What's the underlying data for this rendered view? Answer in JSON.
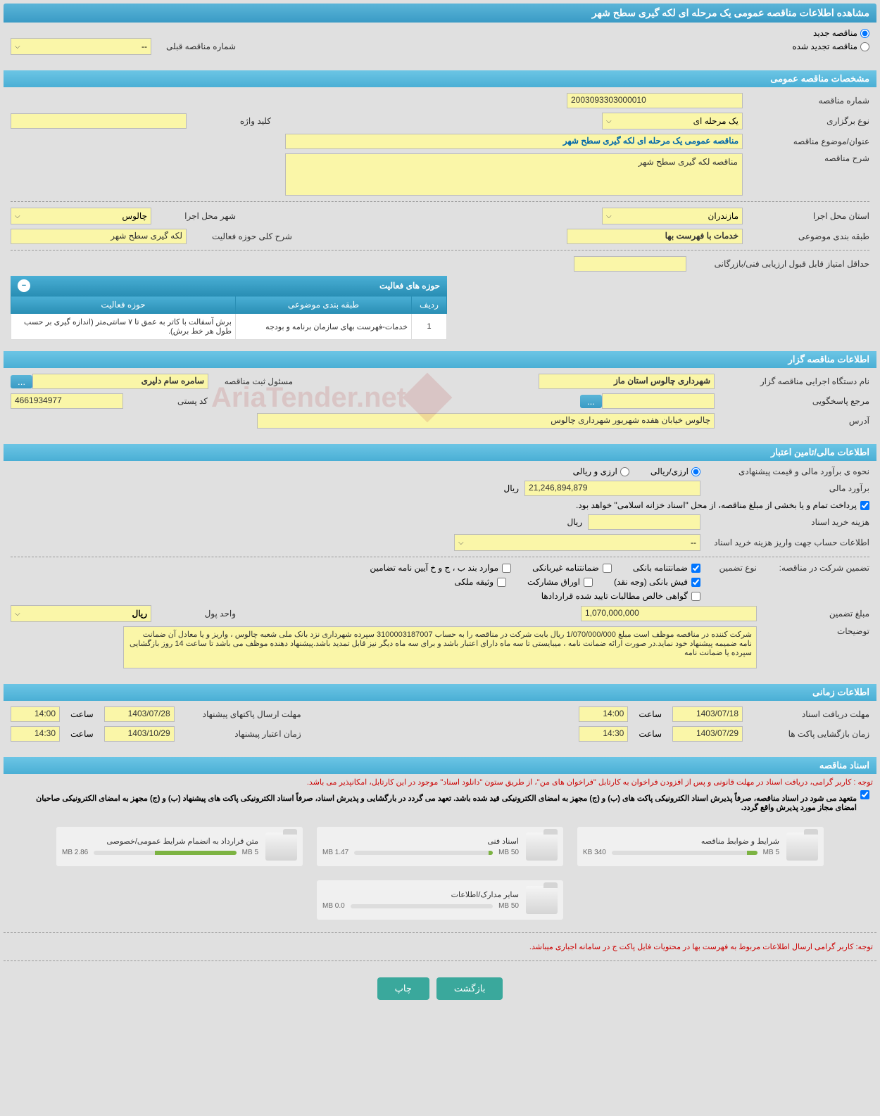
{
  "page_title": "مشاهده اطلاعات مناقصه عمومی یک مرحله ای لکه گیری سطح شهر",
  "tender_type": {
    "new": "مناقصه جدید",
    "renewed": "مناقصه تجدید شده",
    "prev_number_label": "شماره مناقصه قبلی",
    "prev_number_value": "--"
  },
  "sections": {
    "general": "مشخصات مناقصه عمومی",
    "org": "اطلاعات مناقصه گزار",
    "financial": "اطلاعات مالی/تامین اعتبار",
    "timing": "اطلاعات زمانی",
    "docs": "اسناد مناقصه"
  },
  "general": {
    "number_label": "شماره مناقصه",
    "number": "2003093303000010",
    "keyword_label": "کلید واژه",
    "keyword": "",
    "holding_type_label": "نوع برگزاری",
    "holding_type": "یک مرحله ای",
    "subject_label": "عنوان/موضوع مناقصه",
    "subject": "مناقصه عمومی یک مرحله ای لکه گیری سطح شهر",
    "desc_label": "شرح مناقصه",
    "desc": "مناقصه لکه گیری سطح شهر",
    "province_label": "استان محل اجرا",
    "province": "مازندران",
    "city_label": "شهر محل اجرا",
    "city": "چالوس",
    "category_label": "طبقه بندی موضوعی",
    "category": "خدمات با فهرست بها",
    "activity_area_label": "شرح کلی حوزه فعالیت",
    "activity_area": "لکه گیری سطح شهر",
    "score_label": "حداقل امتیاز قابل قبول ارزیابی فنی/بازرگانی",
    "score": ""
  },
  "activity_table": {
    "title": "حوزه های فعالیت",
    "columns": {
      "row": "ردیف",
      "category": "طبقه بندی موضوعی",
      "area": "حوزه فعالیت"
    },
    "rows": [
      {
        "row": "1",
        "category": "خدمات-فهرست بهای سازمان برنامه و بودجه",
        "area": "برش آسفالت با کاتر به عمق تا ۷ سانتی‌متر (اندازه گیری بر حسب طول هر خط برش)."
      }
    ]
  },
  "org": {
    "executor_label": "نام دستگاه اجرایی مناقصه گزار",
    "executor": "شهرداری چالوس استان ماز",
    "register_label": "مسئول ثبت مناقصه",
    "register": "سامره سام دلیری",
    "dots": "...",
    "responder_label": "مرجع پاسخگویی",
    "responder": "",
    "postal_label": "کد پستی",
    "postal": "4661934977",
    "address_label": "آدرس",
    "address": "چالوس خیابان هفده شهریور شهرداری چالوس"
  },
  "financial": {
    "est_method_label": "نحوه ی برآورد مالی و قیمت پیشنهادی",
    "rial_currency": "ارزی/ریالی",
    "rial_and_currency": "ارزی و ریالی",
    "est_label": "برآورد مالی",
    "est_value": "21,246,894,879",
    "rial_unit": "ریال",
    "treasury_note": "پرداخت تمام و یا بخشی از مبلغ مناقصه، از محل \"اسناد خزانه اسلامی\" خواهد بود.",
    "doc_cost_label": "هزینه خرید اسناد",
    "doc_cost": "",
    "account_label": "اطلاعات حساب جهت واریز هزینه خرید اسناد",
    "account_value": "--",
    "guarantee_label": "تضمین شرکت در مناقصه:",
    "guarantee_type_label": "نوع تضمین",
    "guarantees": {
      "bank": "ضمانتنامه بانکی",
      "nonbank": "ضمانتنامه غیربانکی",
      "bylaw": "موارد بند ب ، ج و خ آیین نامه تضامین",
      "fish": "فیش بانکی (وجه نقد)",
      "shares": "اوراق مشارکت",
      "property": "وثیقه ملکی",
      "contract": "گواهی خالص مطالبات تایید شده قراردادها"
    },
    "guarantee_amount_label": "مبلغ تضمین",
    "guarantee_amount": "1,070,000,000",
    "currency_unit_label": "واحد پول",
    "currency_unit": "ریال",
    "notes_label": "توضیحات",
    "notes": "شرکت کننده در مناقصه موظف است مبلغ 1/070/000/000 ریال بابت شرکت در مناقصه را به حساب 3100003187007 سپرده شهرداری نزد بانک ملی شعبه چالوس ، واریز و یا معادل آن ضمانت نامه ضمیمه پیشنهاد خود نماید.در صورت ارائه ضمانت نامه ، میبایستی تا سه ماه دارای اعتبار باشد و برای سه ماه دیگر نیز قابل تمدید باشد.پیشنهاد دهنده موظف می باشد تا ساعت 14 روز بازگشایی سپرده یا ضمانت نامه"
  },
  "timing": {
    "receive_label": "مهلت دریافت اسناد",
    "receive_date": "1403/07/18",
    "time_label": "ساعت",
    "receive_time": "14:00",
    "send_label": "مهلت ارسال پاکتهای پیشنهاد",
    "send_date": "1403/07/28",
    "send_time": "14:00",
    "open_label": "زمان بازگشایی پاکت ها",
    "open_date": "1403/07/29",
    "open_time": "14:30",
    "validity_label": "زمان اعتبار پیشنهاد",
    "validity_date": "1403/10/29",
    "validity_time": "14:30"
  },
  "docs": {
    "note1": "توجه : کاربر گرامی، دریافت اسناد در مهلت قانونی و پس از افزودن فراخوان به کارتابل \"فراخوان های من\"، از طریق ستون \"دانلود اسناد\" موجود در این کارتابل، امکانپذیر می باشد.",
    "note2": "متعهد می شود در اسناد مناقصه، صرفاً پذیرش اسناد الکترونیکی پاکت های (ب) و (ج) مجهز به امضای الکترونیکی قید شده باشد. تعهد می گردد در بارگشایی و پذیرش اسناد، صرفاً اسناد الکترونیکی پاکت های پیشنهاد (ب) و (ج) مجهز به امضای الکترونیکی صاحبان امضای مجاز مورد پذیرش واقع گردد.",
    "items": [
      {
        "title": "شرایط و ضوابط مناقصه",
        "used": "340 KB",
        "total": "5 MB",
        "pct": 7
      },
      {
        "title": "اسناد فنی",
        "used": "1.47 MB",
        "total": "50 MB",
        "pct": 3
      },
      {
        "title": "متن قرارداد به انضمام شرایط عمومی/خصوصی",
        "used": "2.86 MB",
        "total": "5 MB",
        "pct": 57
      },
      {
        "title": "سایر مدارک/اطلاعات",
        "used": "0.0 MB",
        "total": "50 MB",
        "pct": 0
      }
    ],
    "note3": "توجه: کاربر گرامی ارسال اطلاعات مربوط به فهرست بها در محتویات فایل پاکت ج در سامانه اجباری میباشد."
  },
  "footer": {
    "back": "بازگشت",
    "print": "چاپ"
  },
  "watermark": "AriaTender.net"
}
